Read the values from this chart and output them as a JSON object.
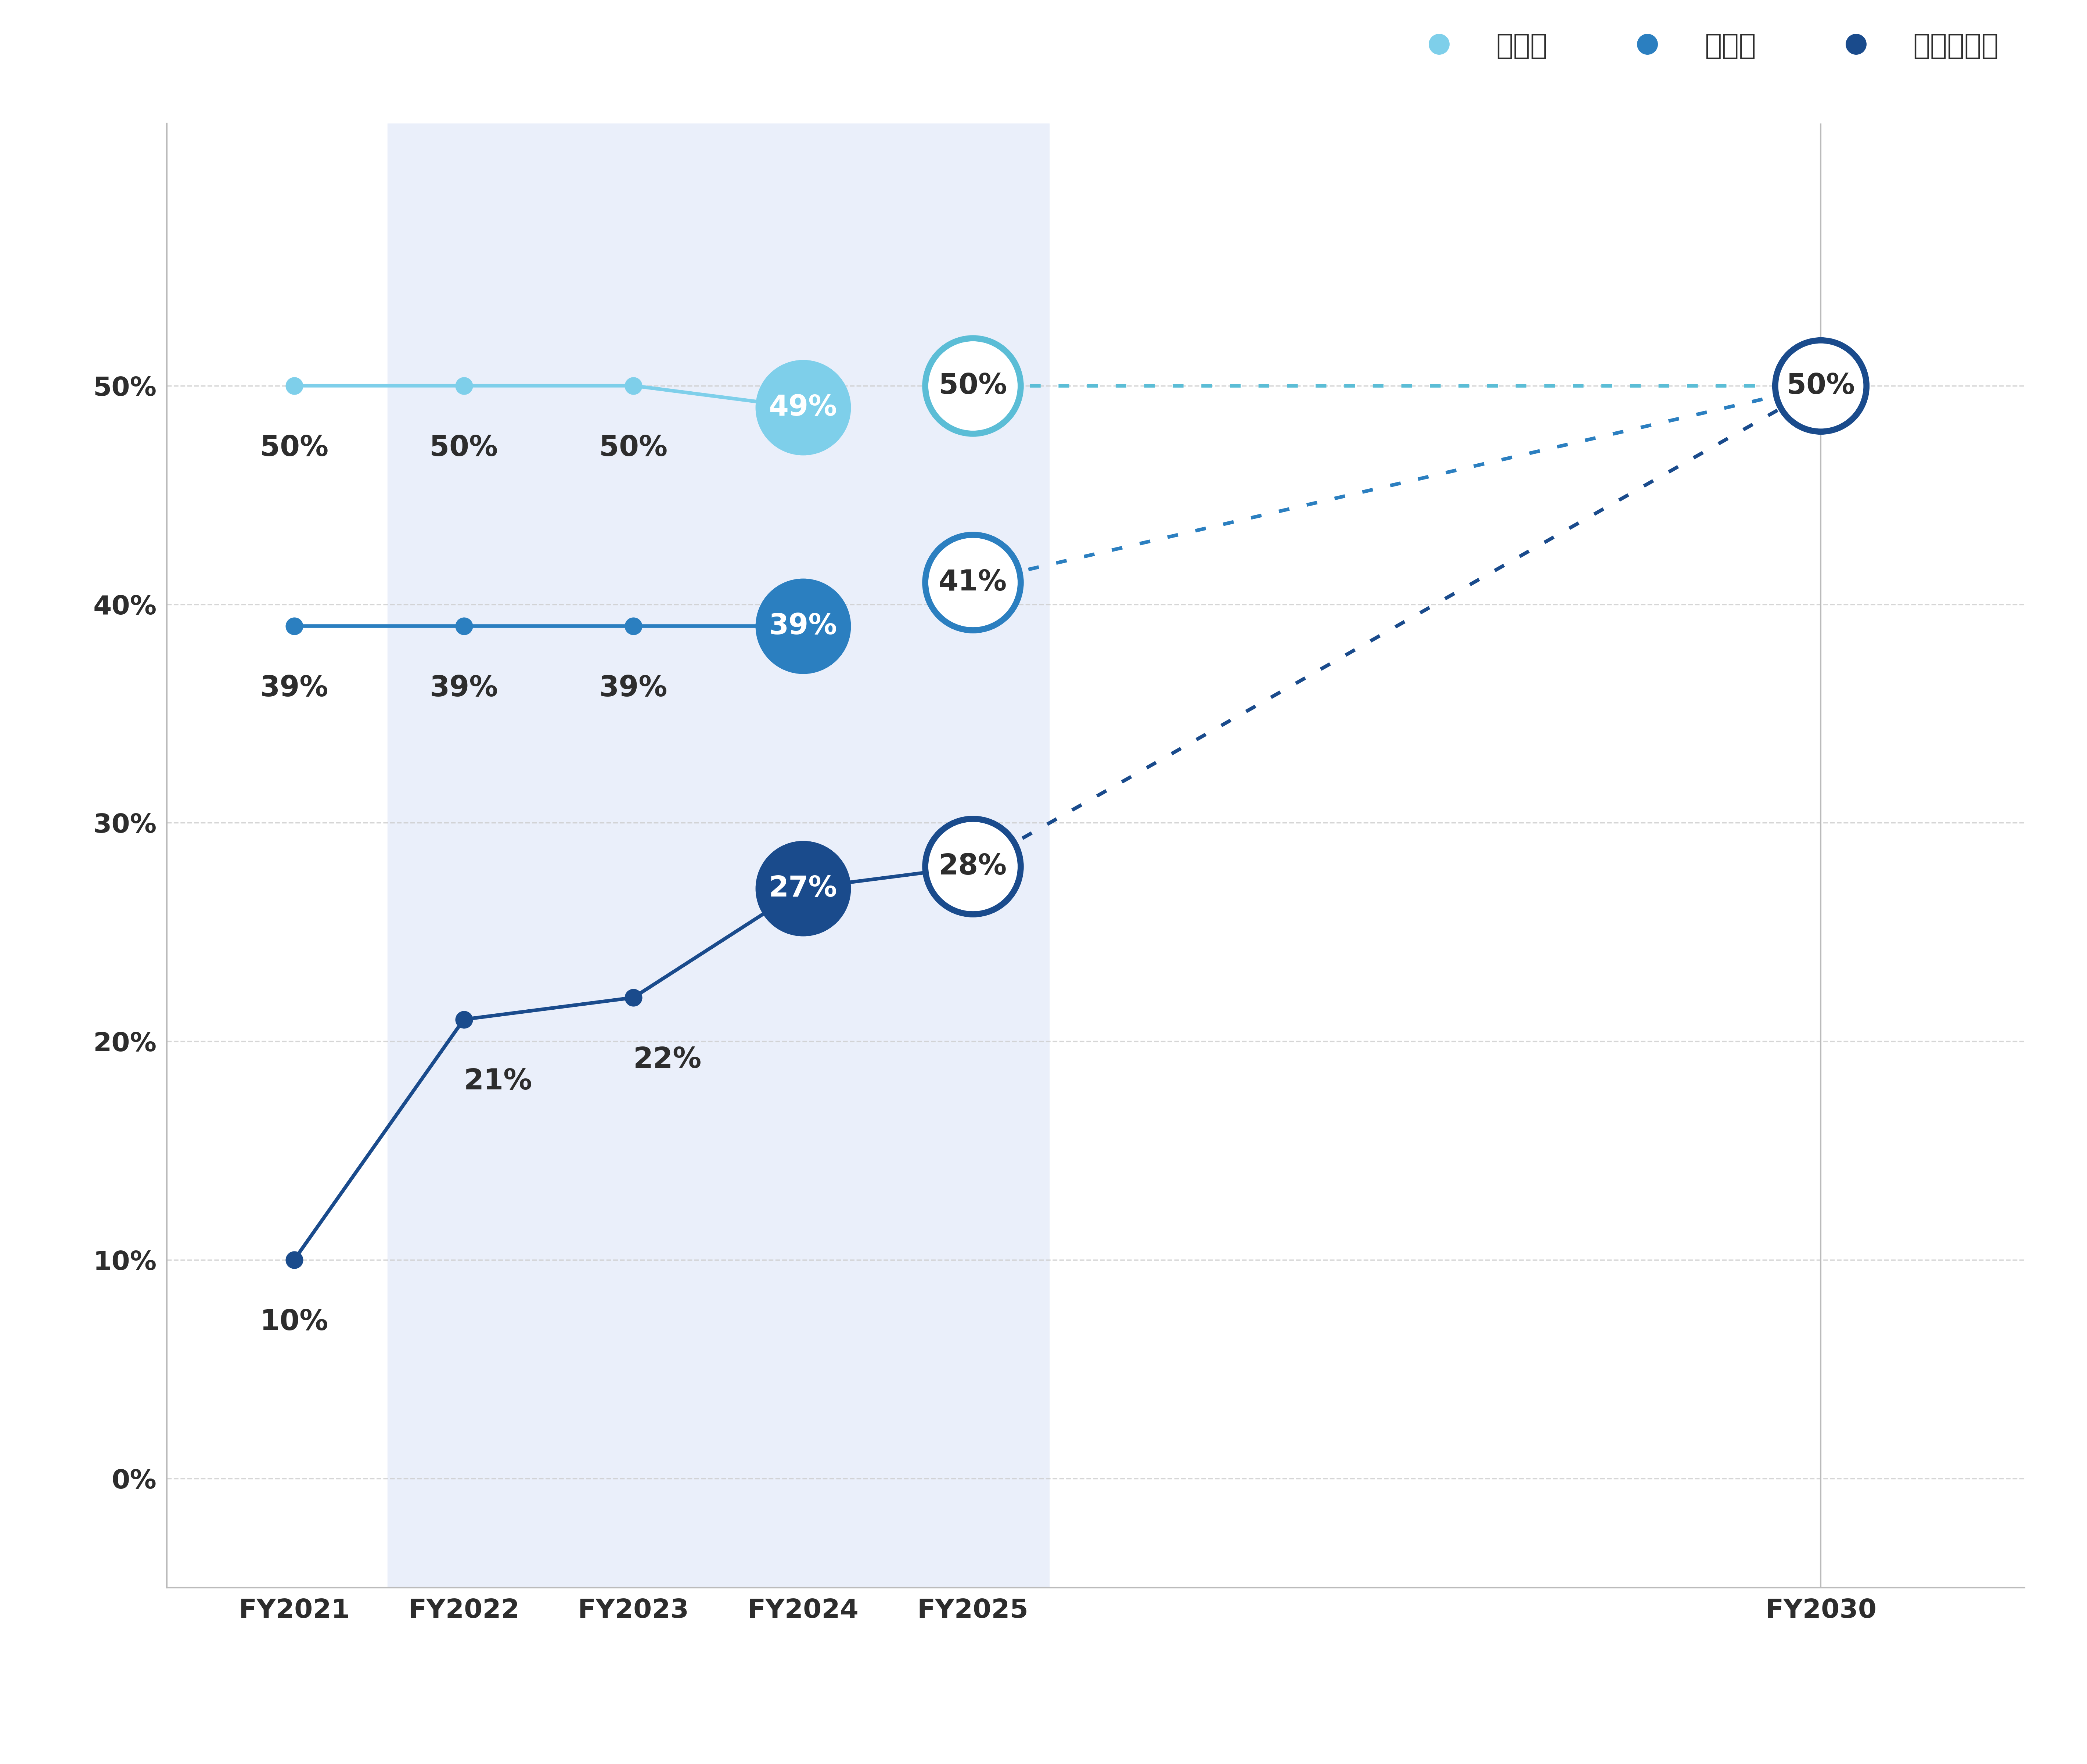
{
  "background_color": "#ffffff",
  "shaded_region_color": "#eaeffa",
  "x_labels": [
    "FY2021",
    "FY2022",
    "FY2023",
    "FY2024",
    "FY2025",
    "FY2030"
  ],
  "x_positions": [
    0,
    1,
    2,
    3,
    4,
    9
  ],
  "employee_color": "#7ecfea",
  "employee_color_dark": "#5bbdd6",
  "manager_color": "#2b7fc0",
  "senior_color": "#1a4b8c",
  "employee_values": [
    50,
    50,
    50,
    49,
    50,
    50
  ],
  "employee_labels": [
    "50%",
    "50%",
    "50%",
    "49%",
    "50%",
    "50%"
  ],
  "manager_values": [
    39,
    39,
    39,
    39,
    41,
    50
  ],
  "manager_labels": [
    "39%",
    "39%",
    "39%",
    "39%",
    "41%",
    "50%"
  ],
  "senior_values": [
    10,
    21,
    22,
    27,
    28,
    50
  ],
  "senior_labels": [
    "10%",
    "21%",
    "22%",
    "27%",
    "28%",
    "50%"
  ],
  "ylim": [
    -5,
    62
  ],
  "yticks": [
    0,
    10,
    20,
    30,
    40,
    50
  ],
  "ytick_labels": [
    "0%",
    "10%",
    "20%",
    "30%",
    "40%",
    "50%"
  ],
  "legend_labels": [
    "従業員",
    "管理職",
    "上級管理職"
  ],
  "legend_colors": [
    "#7ecfea",
    "#2b7fc0",
    "#1a4b8c"
  ],
  "tick_fontsize": 52,
  "annotation_fontsize": 56,
  "legend_fontsize": 56,
  "grid_color": "#cccccc",
  "axis_color": "#bbbbbb",
  "text_color": "#2d2d2d"
}
